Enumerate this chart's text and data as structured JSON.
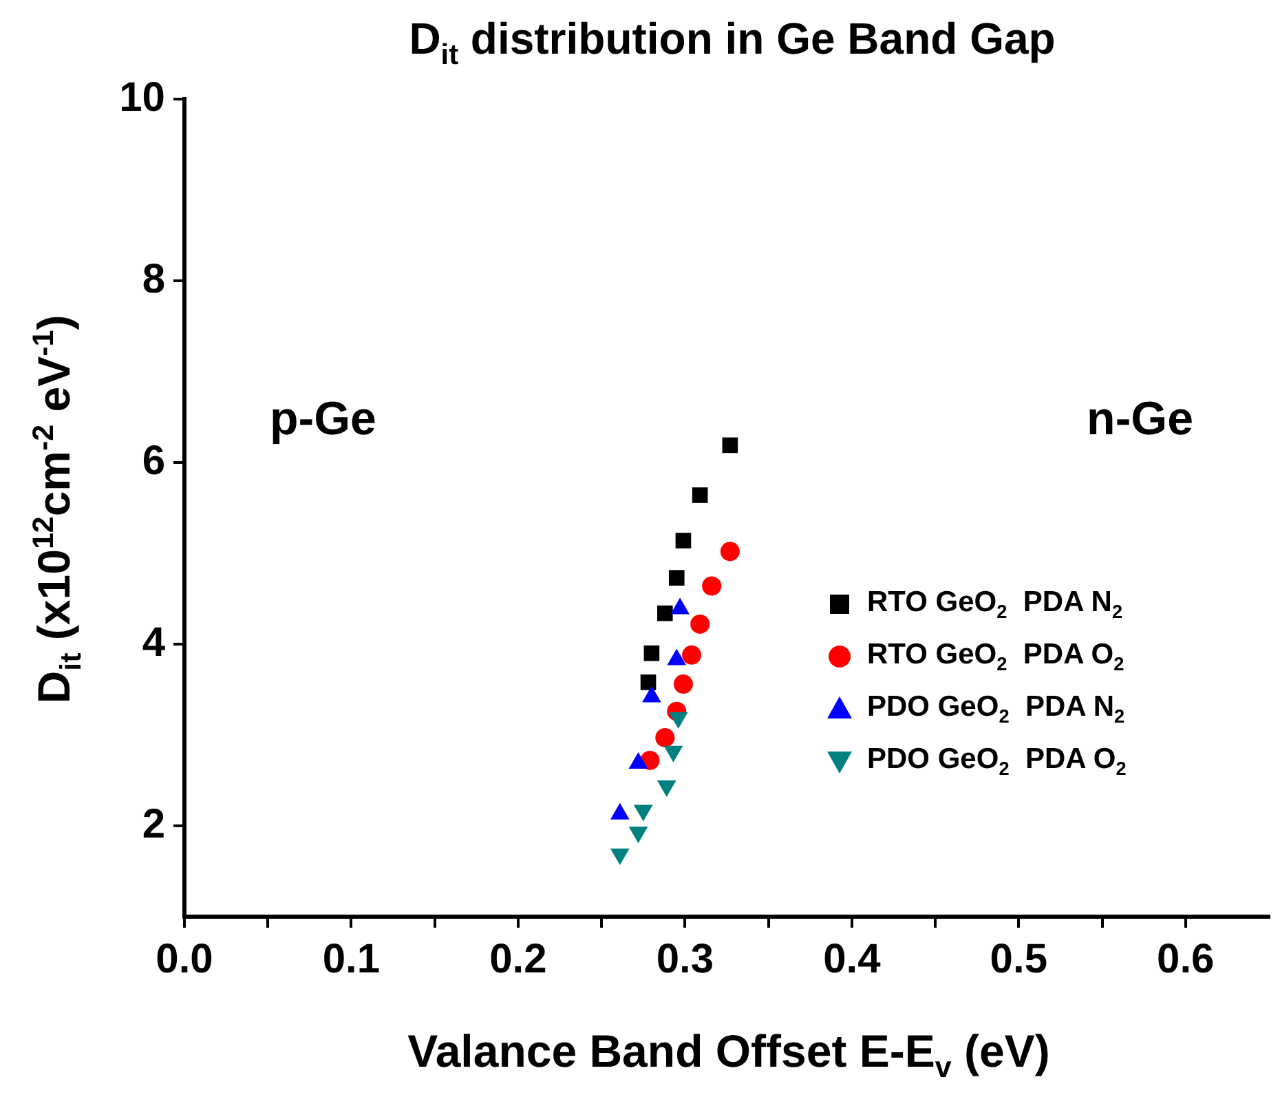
{
  "chart_data": {
    "type": "scatter",
    "title": "D$_{it}$ distribution in Ge Band Gap",
    "xlabel": "Valance Band Offset E-E$_{v}$ (eV)",
    "ylabel": "D$_{it}$ (x10$^{12}$cm$^{-2}$ eV$^{-1}$)",
    "xlim": [
      0,
      0.65
    ],
    "ylim": [
      1,
      10
    ],
    "xticks": [
      {
        "value": 0,
        "label": "0.0"
      },
      {
        "value": 0.05,
        "label": null
      },
      0.1,
      {
        "value": 0.15,
        "label": null
      },
      0.2,
      {
        "value": 0.25,
        "label": null
      },
      0.3,
      {
        "value": 0.35,
        "label": null
      },
      0.4,
      {
        "value": 0.45,
        "label": null
      },
      0.5,
      {
        "value": 0.55,
        "label": null
      },
      0.6
    ],
    "yticks": [
      2,
      4,
      6,
      8,
      10
    ],
    "grid": false,
    "legend": "right",
    "annotations": [
      "p-Ge",
      "n-Ge"
    ],
    "series": [
      {
        "name": "RTO GeO$_{2}$  PDA N$_{2}$",
        "color": "#000000",
        "marker": "square",
        "x": [
          0.327,
          0.309,
          0.299,
          0.295,
          0.288,
          0.28,
          0.278
        ],
        "values": [
          6.19,
          5.64,
          5.14,
          4.73,
          4.34,
          3.9,
          3.58
        ]
      },
      {
        "name": "RTO GeO$_{2}$  PDA O$_{2}$",
        "color": "#ff0000",
        "marker": "circle",
        "x": [
          0.327,
          0.316,
          0.309,
          0.304,
          0.299,
          0.295,
          0.288,
          0.279
        ],
        "values": [
          5.02,
          4.64,
          4.22,
          3.88,
          3.56,
          3.26,
          2.97,
          2.72
        ]
      },
      {
        "name": "PDO GeO$_{2}$  PDA N$_{2}$",
        "color": "#0000ff",
        "marker": "triangle",
        "x": [
          0.297,
          0.295,
          0.28,
          0.272,
          0.261
        ],
        "values": [
          4.39,
          3.83,
          3.42,
          2.69,
          2.13
        ]
      },
      {
        "name": "PDO GeO$_{2}$  PDA O$_{2}$",
        "color": "#008080",
        "marker": "triangle-down",
        "x": [
          0.296,
          0.293,
          0.289,
          0.275,
          0.272,
          0.261
        ],
        "values": [
          3.19,
          2.82,
          2.44,
          2.17,
          1.93,
          1.69
        ]
      }
    ]
  }
}
